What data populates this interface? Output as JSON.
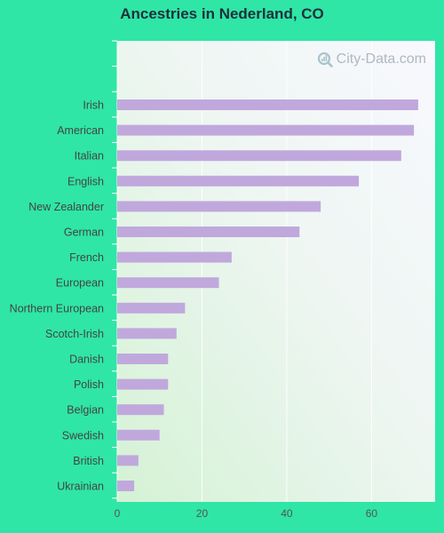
{
  "chart_data": {
    "type": "bar",
    "orientation": "horizontal",
    "title": "Ancestries in Nederland, CO",
    "categories": [
      "Irish",
      "American",
      "Italian",
      "English",
      "New Zealander",
      "German",
      "French",
      "European",
      "Northern European",
      "Scotch-Irish",
      "Danish",
      "Polish",
      "Belgian",
      "Swedish",
      "British",
      "Ukrainian"
    ],
    "values": [
      71,
      70,
      67,
      57,
      48,
      43,
      27,
      24,
      16,
      14,
      12,
      12,
      11,
      10,
      5,
      4
    ],
    "xticks": [
      "0",
      "20",
      "40",
      "60"
    ],
    "xlim": [
      0,
      75
    ],
    "grid": true,
    "bar_color": "#c0a8dc",
    "colors": {
      "page_background": "#2fe6a6",
      "title": "#1f2f3a"
    }
  },
  "watermark": {
    "text": "City-Data.com",
    "icon": "magnifier-icon"
  }
}
